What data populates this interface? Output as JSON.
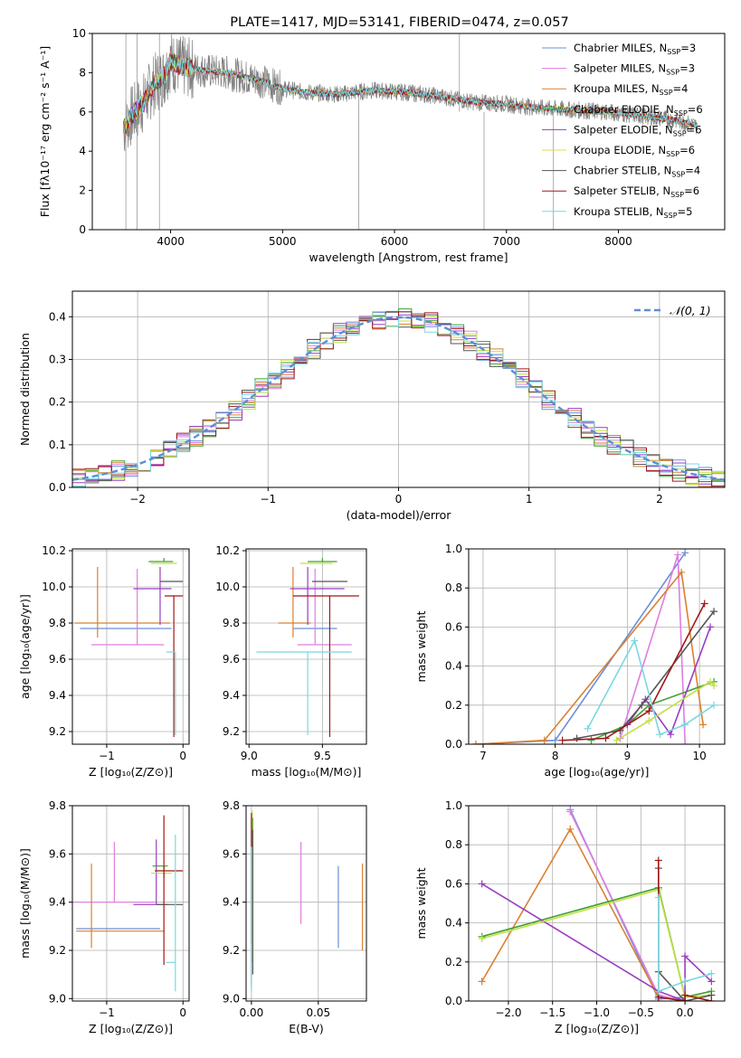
{
  "colors": [
    "#6a8fd8",
    "#e07de0",
    "#d98030",
    "#3fa030",
    "#9a3cc0",
    "#e6d84a",
    "#555555",
    "#a01818",
    "#7ad8e0",
    "#c0e040"
  ],
  "legend_labels": [
    [
      "Chabrier MILES, N",
      "SSP",
      "=3"
    ],
    [
      "Salpeter MILES, N",
      "SSP",
      "=3"
    ],
    [
      "Kroupa MILES, N",
      "SSP",
      "=4"
    ],
    [
      "Chabrier ELODIE, N",
      "SSP",
      "=6"
    ],
    [
      "Salpeter ELODIE, N",
      "SSP",
      "=6"
    ],
    [
      "Kroupa ELODIE, N",
      "SSP",
      "=6"
    ],
    [
      "Chabrier STELIB, N",
      "SSP",
      "=4"
    ],
    [
      "Salpeter STELIB, N",
      "SSP",
      "=6"
    ],
    [
      "Kroupa STELIB, N",
      "SSP",
      "=5"
    ]
  ],
  "chart_data": [
    {
      "id": "spectrum",
      "type": "line",
      "title": "PLATE=1417, MJD=53141, FIBERID=0474, z=0.057",
      "xlabel": "wavelength [Angstrom, rest frame]",
      "ylabel": "Flux [fλ10⁻¹⁷ erg cm⁻² s⁻¹ A⁻¹]",
      "xlim": [
        3300,
        8950
      ],
      "ylim": [
        0,
        10
      ],
      "xticks": [
        4000,
        5000,
        6000,
        7000,
        8000
      ],
      "yticks": [
        0,
        2,
        4,
        6,
        8,
        10
      ],
      "continuum": {
        "x": [
          3580,
          3650,
          3750,
          3850,
          3950,
          4000,
          4100,
          4300,
          4500,
          4800,
          5000,
          5200,
          5500,
          5800,
          6100,
          6400,
          6700,
          7000,
          7300,
          7600,
          7900,
          8200,
          8500,
          8700
        ],
        "y": [
          5.2,
          5.8,
          6.4,
          7.4,
          7.9,
          8.6,
          8.3,
          8.1,
          8.0,
          7.6,
          7.2,
          7.0,
          6.9,
          7.1,
          7.0,
          6.8,
          6.5,
          6.4,
          6.2,
          6.1,
          6.0,
          5.8,
          5.6,
          5.3
        ]
      }
    },
    {
      "id": "residuals",
      "type": "histogram",
      "xlabel": "(data-model)/error",
      "ylabel": "Normed distribution",
      "xlim": [
        -2.5,
        2.5
      ],
      "ylim": [
        0,
        0.46
      ],
      "xticks": [
        -2,
        -1,
        0,
        1,
        2
      ],
      "yticks": [
        0.0,
        0.1,
        0.2,
        0.3,
        0.4
      ],
      "reference_label": "𝒩(0, 1)",
      "bin_width": 0.1
    },
    {
      "id": "age_vs_Z",
      "type": "errorbar",
      "xlabel": "Z [log₁₀(Z/Z⊙)]",
      "ylabel": "age  [log₁₀(age/yr)]",
      "xlim": [
        -1.45,
        0.08
      ],
      "ylim": [
        9.13,
        10.21
      ],
      "xticks": [
        -1,
        0
      ],
      "yticks": [
        9.2,
        9.4,
        9.6,
        9.8,
        10.0,
        10.2
      ],
      "points": [
        {
          "x": -0.25,
          "xerr": [
            1.1,
            0.1
          ],
          "y": 9.77,
          "yerr": [
            0.0,
            0.0
          ]
        },
        {
          "x": -0.6,
          "xerr": [
            0.6,
            0.35
          ],
          "y": 9.68,
          "yerr": [
            0.0,
            0.42
          ]
        },
        {
          "x": -1.12,
          "xerr": [
            0.3,
            0.95
          ],
          "y": 9.8,
          "yerr": [
            0.08,
            0.31
          ]
        },
        {
          "x": -0.25,
          "xerr": [
            0.2,
            0.12
          ],
          "y": 10.14,
          "yerr": [
            0.0,
            0.02
          ]
        },
        {
          "x": -0.3,
          "xerr": [
            0.35,
            0.15
          ],
          "y": 9.99,
          "yerr": [
            0.2,
            0.12
          ]
        },
        {
          "x": -0.3,
          "xerr": [
            0.12,
            0.22
          ],
          "y": 10.13,
          "yerr": [
            0.0,
            0.0
          ]
        },
        {
          "x": -0.1,
          "xerr": [
            0.2,
            0.1
          ],
          "y": 10.03,
          "yerr": [
            0.0,
            0.0
          ]
        },
        {
          "x": -0.12,
          "xerr": [
            0.12,
            0.12
          ],
          "y": 9.95,
          "yerr": [
            0.78,
            0.0
          ]
        },
        {
          "x": -0.1,
          "xerr": [
            0.12,
            0.0
          ],
          "y": 9.64,
          "yerr": [
            0.46,
            0.0
          ]
        }
      ]
    },
    {
      "id": "age_vs_mass",
      "type": "errorbar",
      "xlabel": "mass [log₁₀(M/M⊙)]",
      "ylabel": "",
      "xlim": [
        8.98,
        9.8
      ],
      "ylim": [
        9.13,
        10.21
      ],
      "xticks": [
        9.0,
        9.5
      ],
      "yticks": [
        9.2,
        9.4,
        9.6,
        9.8,
        10.0,
        10.2
      ],
      "points": [
        {
          "x": 9.4,
          "xerr": [
            0.1,
            0.2
          ],
          "y": 9.77,
          "yerr": [
            0.0,
            0.0
          ]
        },
        {
          "x": 9.45,
          "xerr": [
            0.12,
            0.25
          ],
          "y": 9.68,
          "yerr": [
            0.0,
            0.42
          ]
        },
        {
          "x": 9.3,
          "xerr": [
            0.1,
            0.12
          ],
          "y": 9.8,
          "yerr": [
            0.08,
            0.31
          ]
        },
        {
          "x": 9.5,
          "xerr": [
            0.1,
            0.1
          ],
          "y": 10.14,
          "yerr": [
            0.0,
            0.02
          ]
        },
        {
          "x": 9.4,
          "xerr": [
            0.12,
            0.25
          ],
          "y": 9.99,
          "yerr": [
            0.2,
            0.12
          ]
        },
        {
          "x": 9.45,
          "xerr": [
            0.1,
            0.12
          ],
          "y": 10.13,
          "yerr": [
            0.0,
            0.0
          ]
        },
        {
          "x": 9.55,
          "xerr": [
            0.12,
            0.12
          ],
          "y": 10.03,
          "yerr": [
            0.0,
            0.0
          ]
        },
        {
          "x": 9.55,
          "xerr": [
            0.25,
            0.2
          ],
          "y": 9.95,
          "yerr": [
            0.78,
            0.0
          ]
        },
        {
          "x": 9.4,
          "xerr": [
            0.35,
            0.3
          ],
          "y": 9.64,
          "yerr": [
            0.46,
            0.0
          ]
        }
      ]
    },
    {
      "id": "weight_vs_age",
      "type": "line",
      "xlabel": "age  [log₁₀(age/yr)]",
      "ylabel": "mass weight",
      "xlim": [
        6.8,
        10.35
      ],
      "ylim": [
        0,
        1.0
      ],
      "xticks": [
        7,
        8,
        9,
        10
      ],
      "yticks": [
        0.0,
        0.2,
        0.4,
        0.6,
        0.8,
        1.0
      ],
      "series": [
        {
          "x": [
            6.9,
            8.0,
            9.8
          ],
          "y": [
            0.0,
            0.02,
            0.98
          ]
        },
        {
          "x": [
            8.9,
            9.7,
            9.8
          ],
          "y": [
            0.03,
            0.97,
            0.0
          ]
        },
        {
          "x": [
            6.9,
            7.85,
            9.75,
            10.05
          ],
          "y": [
            0.0,
            0.02,
            0.88,
            0.1
          ]
        },
        {
          "x": [
            8.5,
            9.0,
            9.3,
            10.2
          ],
          "y": [
            0.02,
            0.1,
            0.2,
            0.32
          ]
        },
        {
          "x": [
            9.0,
            9.25,
            9.6,
            10.15
          ],
          "y": [
            0.1,
            0.23,
            0.05,
            0.6
          ]
        },
        {
          "x": [
            8.85,
            9.3,
            10.15,
            10.2
          ],
          "y": [
            0.02,
            0.12,
            0.32,
            0.3
          ]
        },
        {
          "x": [
            8.3,
            8.9,
            9.2,
            10.2
          ],
          "y": [
            0.03,
            0.07,
            0.2,
            0.68
          ]
        },
        {
          "x": [
            8.1,
            8.7,
            9.3,
            10.07
          ],
          "y": [
            0.02,
            0.03,
            0.17,
            0.72
          ]
        },
        {
          "x": [
            8.45,
            9.1,
            9.45,
            9.8,
            10.2
          ],
          "y": [
            0.08,
            0.53,
            0.05,
            0.1,
            0.2
          ]
        }
      ]
    },
    {
      "id": "mass_vs_Z",
      "type": "errorbar",
      "xlabel": "Z [log₁₀(Z/Z⊙)]",
      "ylabel": "mass [log₁₀(M/M⊙)]",
      "xlim": [
        -1.45,
        0.08
      ],
      "ylim": [
        8.99,
        9.8
      ],
      "xticks": [
        -1,
        0
      ],
      "yticks": [
        9.0,
        9.2,
        9.4,
        9.6,
        9.8
      ],
      "points": [
        {
          "x": -0.8,
          "xerr": [
            0.6,
            0.5
          ],
          "y": 9.29,
          "yerr": [
            0.0,
            0.0
          ]
        },
        {
          "x": -0.9,
          "xerr": [
            0.55,
            0.55
          ],
          "y": 9.4,
          "yerr": [
            0.0,
            0.25
          ]
        },
        {
          "x": -1.2,
          "xerr": [
            0.2,
            0.95
          ],
          "y": 9.28,
          "yerr": [
            0.07,
            0.28
          ]
        },
        {
          "x": -0.25,
          "xerr": [
            0.15,
            0.05
          ],
          "y": 9.55,
          "yerr": [
            0.05,
            0.0
          ]
        },
        {
          "x": -0.35,
          "xerr": [
            0.3,
            0.15
          ],
          "y": 9.39,
          "yerr": [
            0.0,
            0.27
          ]
        },
        {
          "x": -0.3,
          "xerr": [
            0.12,
            0.15
          ],
          "y": 9.52,
          "yerr": [
            0.0,
            0.0
          ]
        },
        {
          "x": -0.1,
          "xerr": [
            0.25,
            0.1
          ],
          "y": 9.39,
          "yerr": [
            0.0,
            0.0
          ]
        },
        {
          "x": -0.25,
          "xerr": [
            0.12,
            0.25
          ],
          "y": 9.53,
          "yerr": [
            0.39,
            0.23
          ]
        },
        {
          "x": -0.1,
          "xerr": [
            0.12,
            0.0
          ],
          "y": 9.15,
          "yerr": [
            0.12,
            0.53
          ]
        }
      ]
    },
    {
      "id": "mass_vs_ebv",
      "type": "errorbar",
      "xlabel": "E(B-V)",
      "ylabel": "",
      "xlim": [
        -0.004,
        0.086
      ],
      "ylim": [
        8.99,
        9.8
      ],
      "xticks": [
        0.0,
        0.05
      ],
      "yticks": [
        9.0,
        9.2,
        9.4,
        9.6,
        9.8
      ],
      "points": [
        {
          "x": 0.065,
          "y": 9.38,
          "yerr": [
            0.17,
            0.17
          ]
        },
        {
          "x": 0.037,
          "y": 9.48,
          "yerr": [
            0.17,
            0.17
          ]
        },
        {
          "x": 0.083,
          "y": 9.38,
          "yerr": [
            0.18,
            0.18
          ]
        },
        {
          "x": 0.001,
          "y": 9.45,
          "yerr": [
            0.3,
            0.3
          ]
        },
        {
          "x": 0.0,
          "y": 9.4,
          "yerr": [
            0.35,
            0.35
          ]
        },
        {
          "x": 0.0005,
          "y": 9.48,
          "yerr": [
            0.3,
            0.3
          ]
        },
        {
          "x": 0.001,
          "y": 9.4,
          "yerr": [
            0.3,
            0.3
          ]
        },
        {
          "x": 0.0,
          "y": 9.5,
          "yerr": [
            0.27,
            0.27
          ]
        },
        {
          "x": 0.0,
          "y": 9.33,
          "yerr": [
            0.3,
            0.3
          ]
        }
      ]
    },
    {
      "id": "weight_vs_Z",
      "type": "line",
      "xlabel": "Z [log₁₀(Z/Z⊙)]",
      "ylabel": "mass weight",
      "xlim": [
        -2.45,
        0.45
      ],
      "ylim": [
        0,
        1.0
      ],
      "xticks": [
        -2.0,
        -1.5,
        -1.0,
        -0.5,
        0.0
      ],
      "yticks": [
        0.0,
        0.2,
        0.4,
        0.6,
        0.8,
        1.0
      ],
      "series": [
        {
          "x": [
            -1.3,
            -0.3,
            0.0
          ],
          "y": [
            0.98,
            0.01,
            0.02
          ]
        },
        {
          "x": [
            -1.3,
            -0.3,
            0.0
          ],
          "y": [
            0.97,
            0.03,
            0.0
          ]
        },
        {
          "x": [
            -2.3,
            -1.3,
            -0.3,
            0.0
          ],
          "y": [
            0.1,
            0.88,
            0.02,
            0.0
          ]
        },
        {
          "x": [
            -2.3,
            -0.3,
            0.0,
            0.3
          ],
          "y": [
            0.33,
            0.58,
            0.02,
            0.05
          ]
        },
        {
          "x": [
            -2.3,
            -0.3,
            0.0,
            0.0,
            0.3
          ],
          "y": [
            0.6,
            0.05,
            0.0,
            0.23,
            0.1
          ]
        },
        {
          "x": [
            -2.3,
            -0.3,
            0.0,
            0.3
          ],
          "y": [
            0.32,
            0.57,
            0.02,
            0.03
          ]
        },
        {
          "x": [
            -0.3,
            -0.3,
            0.0,
            0.3
          ],
          "y": [
            0.68,
            0.15,
            0.0,
            0.03
          ]
        },
        {
          "x": [
            -0.3,
            -0.3,
            0.0,
            0.0,
            0.3
          ],
          "y": [
            0.72,
            0.02,
            0.0,
            0.03,
            0.0
          ]
        },
        {
          "x": [
            -0.3,
            -0.3,
            0.0,
            0.3
          ],
          "y": [
            0.53,
            0.05,
            0.1,
            0.14
          ]
        }
      ]
    }
  ]
}
